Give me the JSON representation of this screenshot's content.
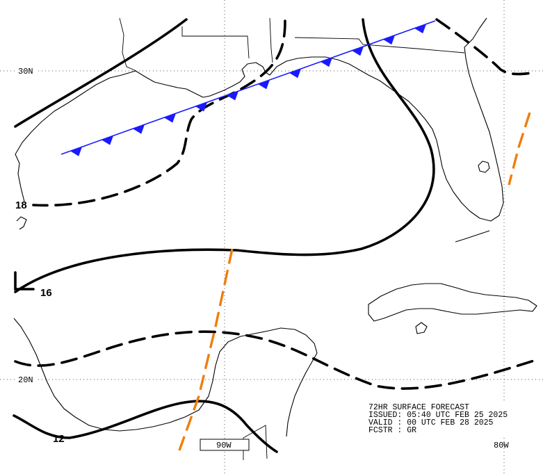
{
  "grid": {
    "lat_labels": [
      "30N",
      "20N"
    ],
    "lon_labels": [
      "90W",
      "80W"
    ]
  },
  "isobars": [
    {
      "label": "18",
      "style": "dashed"
    },
    {
      "label": "16",
      "style": "solid"
    },
    {
      "label": "12",
      "style": "solid"
    }
  ],
  "features": {
    "cold_front": {
      "color": "#1a1aff"
    },
    "troughs": {
      "color": "#f07d0a"
    }
  },
  "forecast_info": {
    "line1": "72HR SURFACE FORECAST",
    "line2": "ISSUED: 05:40 UTC FEB 25 2025",
    "line3": "VALID : 00 UTC FEB 28 2025",
    "line4": "FCSTR : GR"
  }
}
